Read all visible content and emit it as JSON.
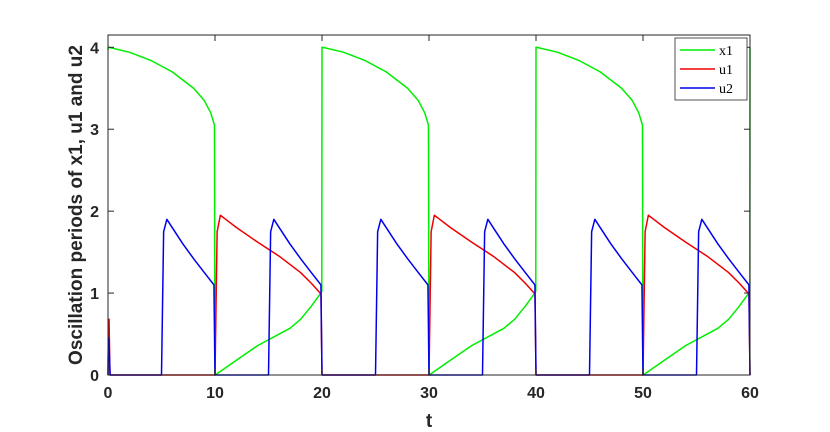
{
  "chart_data": {
    "type": "line",
    "title": "",
    "xlabel": "t",
    "ylabel": "Oscillation periods of x1, u1 and u2",
    "xlim": [
      0,
      60
    ],
    "ylim": [
      0,
      4.15
    ],
    "xticks": [
      0,
      10,
      20,
      30,
      40,
      50,
      60
    ],
    "yticks": [
      0,
      1,
      2,
      3,
      4
    ],
    "grid": false,
    "legend_position": "top-right",
    "series": [
      {
        "name": "x1",
        "color": "#00ee00",
        "x": [
          0,
          0.05,
          2,
          4,
          6,
          8,
          9,
          9.6,
          9.95,
          10.0,
          10.02,
          12,
          14,
          16,
          17,
          18,
          19,
          19.5,
          19.9,
          19.98,
          20.0,
          20.05,
          22,
          24,
          26,
          28,
          29,
          29.6,
          29.95,
          30.0,
          30.02,
          32,
          34,
          36,
          37,
          38,
          39,
          39.5,
          39.9,
          39.98,
          40.0,
          40.05,
          42,
          44,
          46,
          48,
          49,
          49.6,
          49.95,
          50.0,
          50.02,
          52,
          54,
          56,
          57,
          58,
          59,
          59.5,
          59.9,
          59.98,
          60.0
        ],
        "y": [
          3.97,
          4.0,
          3.94,
          3.84,
          3.7,
          3.5,
          3.35,
          3.2,
          3.05,
          0.0,
          0.0,
          0.18,
          0.36,
          0.5,
          0.57,
          0.68,
          0.84,
          0.93,
          1.0,
          1.02,
          4.0,
          4.0,
          3.94,
          3.84,
          3.7,
          3.5,
          3.35,
          3.2,
          3.05,
          0.0,
          0.0,
          0.18,
          0.36,
          0.5,
          0.57,
          0.68,
          0.84,
          0.93,
          1.0,
          1.02,
          4.0,
          4.0,
          3.94,
          3.84,
          3.7,
          3.5,
          3.35,
          3.2,
          3.05,
          0.0,
          0.0,
          0.18,
          0.36,
          0.5,
          0.57,
          0.68,
          0.84,
          0.93,
          1.0,
          1.02,
          4.0
        ]
      },
      {
        "name": "u1",
        "color": "#ee0000",
        "x": [
          0,
          0.05,
          0.1,
          0.18,
          1,
          5,
          9.9,
          10.0,
          10.2,
          10.5,
          11,
          12,
          14,
          16,
          18,
          19,
          19.9,
          20.0,
          20.1,
          25,
          29.9,
          30.0,
          30.2,
          30.5,
          31,
          32,
          34,
          36,
          38,
          39,
          39.9,
          40.0,
          40.1,
          45,
          49.9,
          50.0,
          50.2,
          50.5,
          51,
          52,
          54,
          56,
          58,
          59,
          59.9,
          60.0
        ],
        "y": [
          0.0,
          0.68,
          0.68,
          0.0,
          0.0,
          0.0,
          0.0,
          0.0,
          1.75,
          1.95,
          1.9,
          1.8,
          1.62,
          1.45,
          1.25,
          1.12,
          0.99,
          0.0,
          0.0,
          0.0,
          0.0,
          0.0,
          1.75,
          1.95,
          1.9,
          1.8,
          1.62,
          1.45,
          1.25,
          1.12,
          0.99,
          0.0,
          0.0,
          0.0,
          0.0,
          0.0,
          1.75,
          1.95,
          1.9,
          1.8,
          1.62,
          1.45,
          1.25,
          1.12,
          0.99,
          0.0
        ]
      },
      {
        "name": "u2",
        "color": "#0000ee",
        "x": [
          0,
          0.03,
          0.08,
          0.2,
          3,
          5.0,
          5.2,
          5.5,
          6,
          7,
          8,
          9,
          9.9,
          10.0,
          10.1,
          15.0,
          15.2,
          15.5,
          16,
          17,
          18,
          19,
          19.9,
          20.0,
          20.1,
          25.0,
          25.2,
          25.5,
          26,
          27,
          28,
          29,
          29.9,
          30.0,
          30.1,
          35.0,
          35.2,
          35.5,
          36,
          37,
          38,
          39,
          39.9,
          40.0,
          40.1,
          45.0,
          45.2,
          45.5,
          46,
          47,
          48,
          49,
          49.9,
          50.0,
          50.1,
          55.0,
          55.2,
          55.5,
          56,
          57,
          58,
          59,
          59.9,
          60.0
        ],
        "y": [
          0.0,
          0.42,
          0.45,
          0.0,
          0.0,
          0.0,
          1.75,
          1.9,
          1.8,
          1.6,
          1.42,
          1.25,
          1.1,
          0.0,
          0.0,
          0.0,
          1.75,
          1.9,
          1.8,
          1.6,
          1.42,
          1.25,
          1.1,
          0.0,
          0.0,
          0.0,
          1.75,
          1.9,
          1.8,
          1.6,
          1.42,
          1.25,
          1.1,
          0.0,
          0.0,
          0.0,
          1.75,
          1.9,
          1.8,
          1.6,
          1.42,
          1.25,
          1.1,
          0.0,
          0.0,
          0.0,
          1.75,
          1.9,
          1.8,
          1.6,
          1.42,
          1.25,
          1.1,
          0.0,
          0.0,
          0.0,
          1.75,
          1.9,
          1.8,
          1.6,
          1.42,
          1.25,
          1.1,
          0.0
        ]
      }
    ]
  }
}
